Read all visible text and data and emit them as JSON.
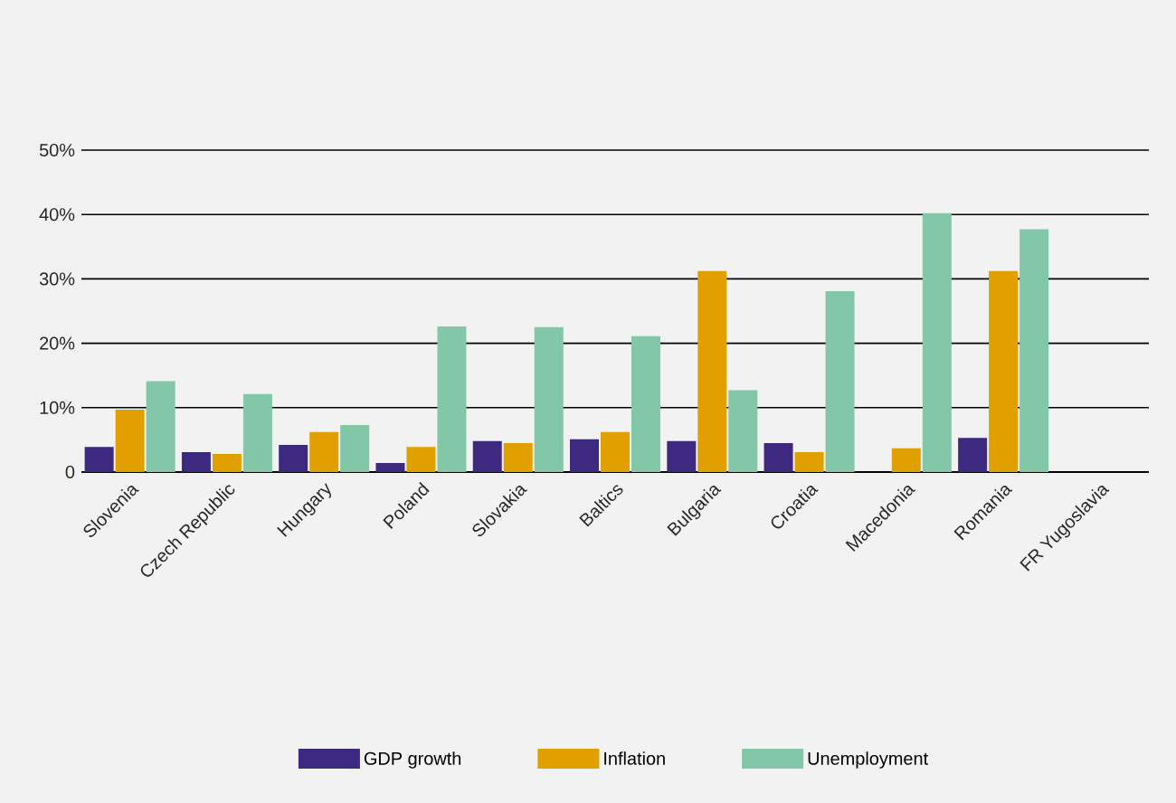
{
  "chart_data": {
    "type": "bar",
    "categories": [
      "Slovenia",
      "Czech Republic",
      "Hungary",
      "Poland",
      "Slovakia",
      "Baltics",
      "Bulgaria",
      "Croatia",
      "Macedonia",
      "Romania",
      "FR Yugoslavia"
    ],
    "series": [
      {
        "name": "GDP growth",
        "color": "#3d2a80",
        "values": [
          3.9,
          3.1,
          4.2,
          1.4,
          4.8,
          5.1,
          4.8,
          4.5,
          null,
          5.3,
          null
        ]
      },
      {
        "name": "Inflation",
        "color": "#e0a000",
        "values": [
          9.7,
          2.8,
          6.2,
          3.9,
          4.5,
          6.2,
          31.2,
          3.1,
          3.7,
          31.2,
          null
        ]
      },
      {
        "name": "Unemployment",
        "color": "#82c8a8",
        "values": [
          14.1,
          12.1,
          7.3,
          22.6,
          22.5,
          21.1,
          12.7,
          28.1,
          40.2,
          37.7,
          null
        ]
      }
    ],
    "ylim": [
      0,
      50
    ],
    "yticks": [
      0,
      {
        "value": 10,
        "label": "10%"
      },
      {
        "value": 20,
        "label": "20%"
      },
      {
        "value": 30,
        "label": "30%"
      },
      {
        "value": 40,
        "label": "40%"
      },
      {
        "value": 50,
        "label": "50%"
      }
    ],
    "grid": "y",
    "legend": "bottom"
  }
}
